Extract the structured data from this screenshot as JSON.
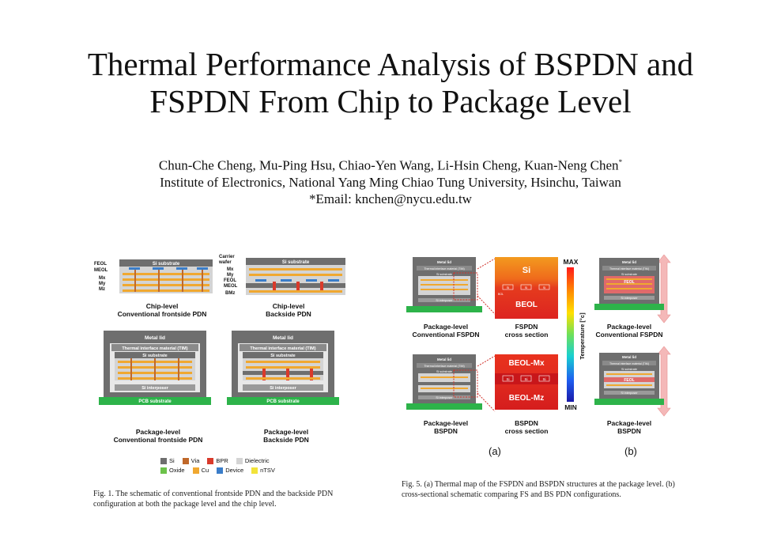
{
  "paper": {
    "title_line1": "Thermal Performance Analysis of BSPDN and",
    "title_line2": "FSPDN From Chip to Package Level",
    "authors": "Chun-Che Cheng, Mu-Ping Hsu, Chiao-Yen Wang, Li-Hsin Cheng, Kuan-Neng Chen",
    "author_mark": "*",
    "affiliation": "Institute of Electronics, National Yang Ming Chiao Tung University, Hsinchu, Taiwan",
    "email": "*Email: knchen@nycu.edu.tw"
  },
  "fig1": {
    "chip_fs": {
      "layer_labels": [
        "FEOL",
        "MEOL",
        "Mx",
        "My",
        "Mz"
      ],
      "substrate": "Si substrate",
      "caption_line1": "Chip-level",
      "caption_line2": "Conventional frontside PDN"
    },
    "chip_bs": {
      "layer_labels": [
        "Carrier",
        "wafer",
        "Mx",
        "My",
        "FEOL",
        "MEOL",
        "BMz"
      ],
      "substrate": "Si substrate",
      "caption_line1": "Chip-level",
      "caption_line2": "Backside PDN"
    },
    "pkg_fs": {
      "lid": "Metal lid",
      "tim": "Thermal interface material (TIM)",
      "substrate": "Si substrate",
      "interposer": "Si interposer",
      "pcb": "PCB substrate",
      "caption_line1": "Package-level",
      "caption_line2": "Conventional frontside PDN"
    },
    "pkg_bs": {
      "lid": "Metal lid",
      "tim": "Thermal interface material (TIM)",
      "substrate": "Si substrate",
      "interposer": "Si interposer",
      "pcb": "PCB substrate",
      "caption_line1": "Package-level",
      "caption_line2": "Backside PDN"
    },
    "legend": [
      {
        "label": "Si",
        "color": "#6e6e6e"
      },
      {
        "label": "Via",
        "color": "#c0682a"
      },
      {
        "label": "BPR",
        "color": "#d93a2b"
      },
      {
        "label": "Dielectric",
        "color": "#d4d4d4"
      },
      {
        "label": "Oxide",
        "color": "#6cc24a"
      },
      {
        "label": "Cu",
        "color": "#f0a830"
      },
      {
        "label": "Device",
        "color": "#3a7dc9"
      },
      {
        "label": "nTSV",
        "color": "#f2e33a"
      }
    ],
    "caption": "Fig. 1.   The schematic of conventional frontside PDN and the backside PDN configuration at both the package level and the chip level."
  },
  "fig5": {
    "fs_pkg_caption_line1": "Package-level",
    "fs_pkg_caption_line2": "Conventional  FSPDN",
    "fs_xsec_caption_line1": "FSPDN",
    "fs_xsec_caption_line2": "cross section",
    "bs_pkg_caption_line1": "Package-level",
    "bs_pkg_caption_line2": "BSPDN",
    "bs_xsec_caption_line1": "BSPDN",
    "bs_xsec_caption_line2": "cross section",
    "fs_xsec_labels": [
      "Si",
      "BEOL",
      "Si",
      "Si",
      "Si",
      "BOL"
    ],
    "bs_xsec_labels": [
      "BEOL-Mx",
      "Si",
      "Si",
      "Si",
      "BEOL-Mz"
    ],
    "colorbar_max": "MAX",
    "colorbar_min": "MIN",
    "colorbar_label": "Temperature [°c]",
    "pkg_small_labels": [
      "Metal lid",
      "Thermal interface material (TIM)",
      "Si substrate",
      "Si interposer"
    ],
    "right_fs_labels": [
      "Metal lid",
      "Thermal interface material (TIM)",
      "Si substrate",
      "FEOL",
      "Si interposer"
    ],
    "right_bs_labels": [
      "Metal lid",
      "Thermal interface material (TIM)",
      "Si substrate",
      "FEOL",
      "Si interposer"
    ],
    "right_fs_caption_line1": "Package-level",
    "right_fs_caption_line2": "Conventional FSPDN",
    "right_bs_caption_line1": "Package-level",
    "right_bs_caption_line2": "BSPDN",
    "panel_a": "(a)",
    "panel_b": "(b)",
    "caption": "Fig. 5.   (a) Thermal map of the FSPDN and BSPDN structures at the package level. (b) cross-sectional schematic comparing FS and BS PDN configurations."
  }
}
